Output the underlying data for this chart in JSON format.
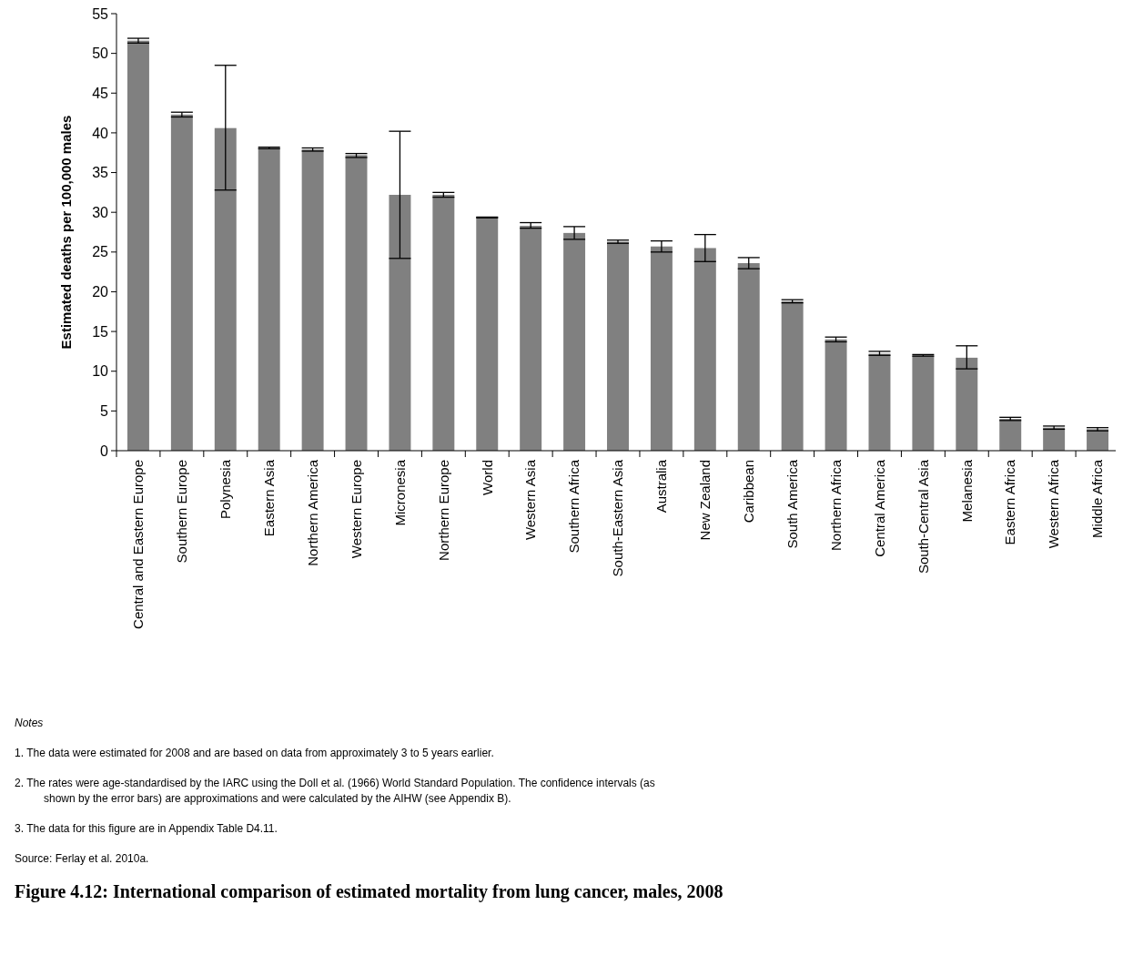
{
  "chart_data": {
    "type": "bar",
    "title": "Figure 4.12: International comparison of estimated mortality from lung cancer, males, 2008",
    "ylabel": "Estimated deaths per 100,000 males",
    "categories": [
      "Central and Eastern Europe",
      "Southern Europe",
      "Polynesia",
      "Eastern Asia",
      "Northern America",
      "Western Europe",
      "Micronesia",
      "Northern Europe",
      "World",
      "Western Asia",
      "Southern Africa",
      "South-Eastern Asia",
      "Australia",
      "New Zealand",
      "Caribbean",
      "South America",
      "Northern Africa",
      "Central America",
      "South-Central Asia",
      "Melanesia",
      "Eastern Africa",
      "Western Africa",
      "Middle Africa"
    ],
    "values": [
      51.6,
      42.3,
      40.6,
      38.1,
      37.9,
      37.2,
      32.2,
      32.2,
      29.4,
      28.3,
      27.4,
      26.3,
      25.7,
      25.5,
      23.6,
      18.8,
      14.0,
      12.2,
      12.0,
      11.7,
      4.0,
      2.9,
      2.7
    ],
    "errors": [
      [
        51.3,
        51.9
      ],
      [
        42.0,
        42.6
      ],
      [
        32.8,
        48.5
      ],
      [
        38.0,
        38.2
      ],
      [
        37.7,
        38.1
      ],
      [
        36.9,
        37.4
      ],
      [
        24.2,
        40.2
      ],
      [
        31.9,
        32.5
      ],
      [
        29.3,
        29.4
      ],
      [
        28.0,
        28.7
      ],
      [
        26.6,
        28.2
      ],
      [
        26.1,
        26.5
      ],
      [
        25.0,
        26.4
      ],
      [
        23.8,
        27.2
      ],
      [
        22.9,
        24.3
      ],
      [
        18.6,
        19.0
      ],
      [
        13.7,
        14.3
      ],
      [
        12.0,
        12.5
      ],
      [
        11.9,
        12.1
      ],
      [
        10.3,
        13.2
      ],
      [
        3.8,
        4.2
      ],
      [
        2.7,
        3.1
      ],
      [
        2.5,
        2.9
      ]
    ],
    "color": "#808080",
    "ylim": [
      0,
      55
    ],
    "yticks": [
      0,
      5,
      10,
      15,
      20,
      25,
      30,
      35,
      40,
      45,
      50,
      55
    ],
    "grid": false,
    "annotations": [
      "Notes",
      "1.   The data were estimated for 2008 and are based on data from approximately 3 to 5 years earlier.",
      "2.   The rates were age-standardised by the IARC using the Doll et al. (1966) World Standard Population. The confidence intervals (as shown by the error bars) are approximations and were calculated by the AIHW (see Appendix B).",
      "3.   The data for this figure are in Appendix Table D4.11.",
      "Source: Ferlay et al. 2010a."
    ]
  }
}
